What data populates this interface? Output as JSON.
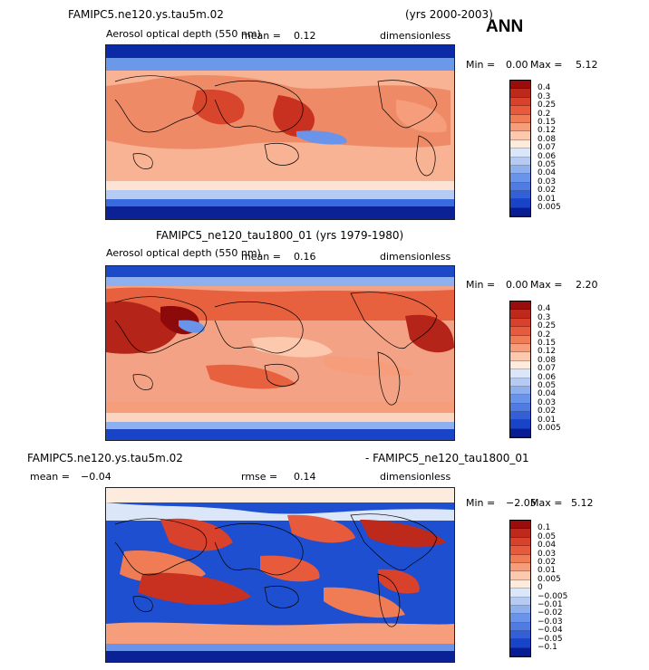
{
  "season": "ANN",
  "panels": [
    {
      "case_title": "FAMIPC5.ne120.ys.tau5m.02",
      "years": "(yrs 2000-2003)",
      "variable": "Aerosol optical depth (550 nm)",
      "mean_label": "mean =",
      "mean_value": "0.12",
      "units": "dimensionless",
      "min_label": "Min =",
      "min_value": "0.00",
      "max_label": "Max =",
      "max_value": "5.12",
      "levels": [
        "0.4",
        "0.3",
        "0.25",
        "0.2",
        "0.15",
        "0.12",
        "0.08",
        "0.07",
        "0.06",
        "0.05",
        "0.04",
        "0.03",
        "0.02",
        "0.01",
        "0.005"
      ]
    },
    {
      "case_title": "FAMIPC5_ne120_tau1800_01 (yrs 1979-1980)",
      "variable": "Aerosol optical depth (550 nm)",
      "mean_label": "mean =",
      "mean_value": "0.16",
      "units": "dimensionless",
      "min_label": "Min =",
      "min_value": "0.00",
      "max_label": "Max =",
      "max_value": "2.20",
      "levels": [
        "0.4",
        "0.3",
        "0.25",
        "0.2",
        "0.15",
        "0.12",
        "0.08",
        "0.07",
        "0.06",
        "0.05",
        "0.04",
        "0.03",
        "0.02",
        "0.01",
        "0.005"
      ]
    },
    {
      "case_title": "FAMIPC5.ne120.ys.tau5m.02",
      "case_title_right": "- FAMIPC5_ne120_tau1800_01",
      "mean_label": "mean =",
      "mean_value": "−0.04",
      "rmse_label": "rmse =",
      "rmse_value": "0.14",
      "units": "dimensionless",
      "min_label": "Min =",
      "min_value": "−2.05",
      "max_label": "Max =",
      "max_value": "5.12",
      "levels": [
        "0.1",
        "0.05",
        "0.04",
        "0.03",
        "0.02",
        "0.01",
        "0.005",
        "0",
        "−0.005",
        "−0.01",
        "−0.02",
        "−0.03",
        "−0.04",
        "−0.05",
        "−0.1"
      ]
    }
  ],
  "colors": {
    "abs_scale": [
      "#9a0d0d",
      "#bd2a1c",
      "#d8412b",
      "#e85a3c",
      "#f07c55",
      "#f69e7c",
      "#fcc9ae",
      "#fdebdd",
      "#dbe6f8",
      "#b5cbf3",
      "#8eb0ef",
      "#6a94ea",
      "#4f7be2",
      "#3360d8",
      "#1a44c7",
      "#081d94"
    ],
    "diff_scale": [
      "#9a0d0d",
      "#bd2a1c",
      "#d8412b",
      "#e85a3c",
      "#f07c55",
      "#f69e7c",
      "#fcc9ae",
      "#fdebdd",
      "#dbe6f8",
      "#b5cbf3",
      "#8eb0ef",
      "#6a94ea",
      "#4f7be2",
      "#3360d8",
      "#1a44c7",
      "#081d94"
    ]
  }
}
